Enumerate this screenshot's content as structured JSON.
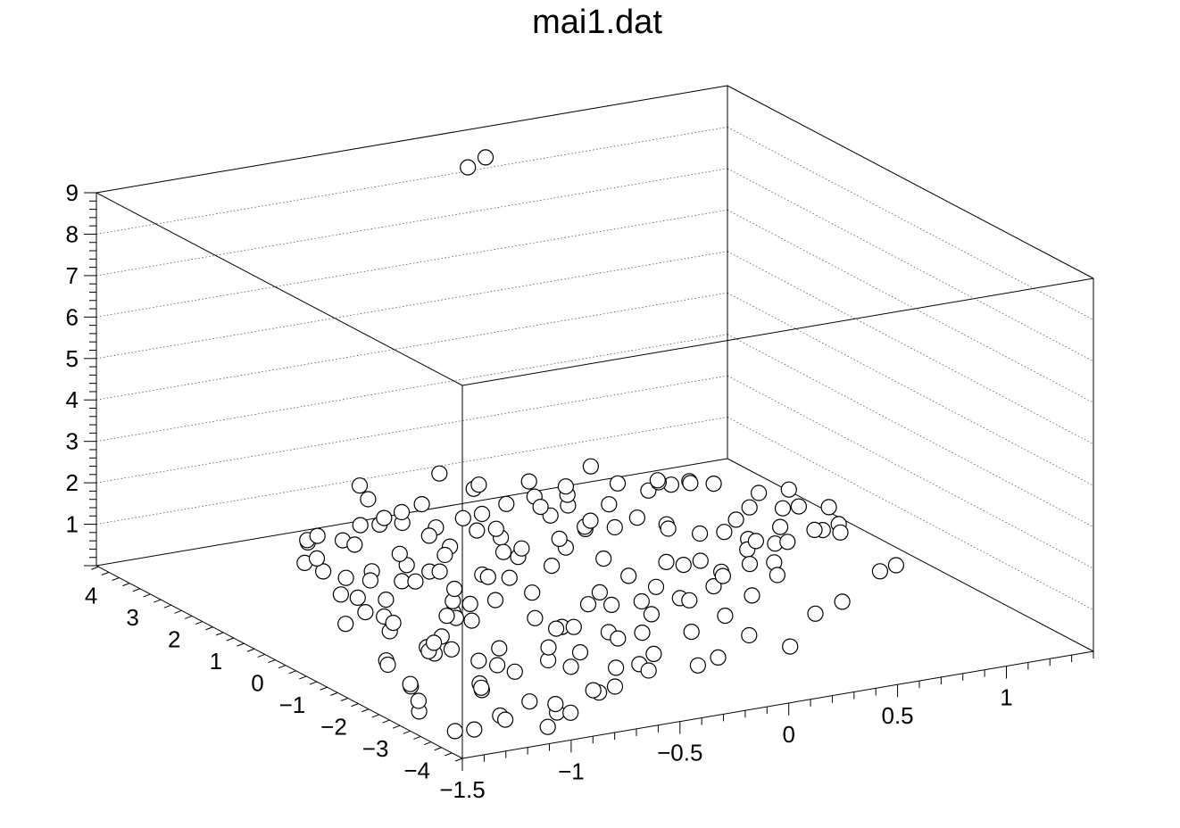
{
  "chart_data": {
    "type": "scatter",
    "title": "mai1.dat",
    "xlim": [
      -1.5,
      1.4
    ],
    "ylim": [
      -4.3,
      4.5
    ],
    "zlim": [
      0,
      9
    ],
    "grid": true,
    "x_ticks": [
      {
        "value": -1.5,
        "label": "−1.5"
      },
      {
        "value": -1.0,
        "label": "−1"
      },
      {
        "value": -0.5,
        "label": "−0.5"
      },
      {
        "value": 0.0,
        "label": "0"
      },
      {
        "value": 0.5,
        "label": "0.5"
      },
      {
        "value": 1.0,
        "label": "1"
      }
    ],
    "y_ticks": [
      {
        "value": 4,
        "label": "4"
      },
      {
        "value": 3,
        "label": "3"
      },
      {
        "value": 2,
        "label": "2"
      },
      {
        "value": 1,
        "label": "1"
      },
      {
        "value": 0,
        "label": "0"
      },
      {
        "value": -1,
        "label": "−1"
      },
      {
        "value": -2,
        "label": "−2"
      },
      {
        "value": -3,
        "label": "−3"
      },
      {
        "value": -4,
        "label": "−4"
      }
    ],
    "z_ticks": [
      {
        "value": 1,
        "label": "1"
      },
      {
        "value": 2,
        "label": "2"
      },
      {
        "value": 3,
        "label": "3"
      },
      {
        "value": 4,
        "label": "4"
      },
      {
        "value": 5,
        "label": "5"
      },
      {
        "value": 6,
        "label": "6"
      },
      {
        "value": 7,
        "label": "7"
      },
      {
        "value": 8,
        "label": "8"
      },
      {
        "value": 9,
        "label": "9"
      }
    ],
    "points": [
      [
        -1.05,
        -4.0,
        0.2
      ],
      [
        -0.95,
        -3.7,
        0.3
      ],
      [
        -0.85,
        -3.5,
        0.1
      ],
      [
        -0.7,
        -3.4,
        0.4
      ],
      [
        -0.55,
        -3.0,
        0.2
      ],
      [
        -0.4,
        -2.8,
        0.5
      ],
      [
        -0.3,
        -2.5,
        0.1
      ],
      [
        -0.15,
        -2.9,
        0.3
      ],
      [
        0.0,
        -2.6,
        0.2
      ],
      [
        0.2,
        -2.3,
        0.4
      ],
      [
        0.35,
        -2.5,
        0.1
      ],
      [
        0.6,
        -1.8,
        0.3
      ],
      [
        0.8,
        -1.4,
        0.2
      ],
      [
        1.05,
        -1.0,
        0.5
      ],
      [
        1.2,
        -0.6,
        0.3
      ],
      [
        -1.2,
        -3.2,
        0.8
      ],
      [
        -1.1,
        -2.6,
        1.1
      ],
      [
        -0.9,
        -2.0,
        0.5
      ],
      [
        -0.65,
        -1.6,
        1.2
      ],
      [
        -0.45,
        -1.2,
        0.6
      ],
      [
        -0.2,
        -0.8,
        1.0
      ],
      [
        0.05,
        -0.5,
        0.4
      ],
      [
        0.3,
        -0.2,
        0.9
      ],
      [
        0.55,
        0.2,
        0.3
      ],
      [
        0.75,
        0.6,
        0.7
      ],
      [
        0.95,
        1.0,
        0.2
      ],
      [
        1.1,
        1.6,
        0.6
      ],
      [
        1.25,
        2.0,
        0.3
      ],
      [
        -1.3,
        -2.4,
        1.5
      ],
      [
        -1.15,
        -1.8,
        0.9
      ],
      [
        -0.95,
        -1.2,
        1.4
      ],
      [
        -0.75,
        -0.6,
        0.7
      ],
      [
        -0.5,
        -0.2,
        1.3
      ],
      [
        -0.3,
        0.3,
        0.5
      ],
      [
        -0.05,
        0.8,
        1.1
      ],
      [
        0.2,
        1.2,
        0.4
      ],
      [
        0.45,
        1.7,
        0.9
      ],
      [
        0.7,
        2.3,
        0.2
      ],
      [
        0.9,
        2.8,
        0.8
      ],
      [
        1.0,
        3.3,
        0.4
      ],
      [
        -1.35,
        -1.0,
        2.0
      ],
      [
        -1.2,
        -0.4,
        1.2
      ],
      [
        -1.0,
        0.2,
        0.6
      ],
      [
        -0.8,
        0.7,
        1.4
      ],
      [
        -0.6,
        1.2,
        0.8
      ],
      [
        -0.35,
        1.7,
        1.6
      ],
      [
        -0.1,
        2.1,
        0.7
      ],
      [
        0.15,
        2.6,
        1.2
      ],
      [
        0.4,
        3.1,
        0.5
      ],
      [
        0.6,
        3.6,
        1.0
      ],
      [
        -1.25,
        0.8,
        1.8
      ],
      [
        -1.05,
        1.4,
        1.1
      ],
      [
        -0.85,
        1.9,
        0.5
      ],
      [
        -0.6,
        2.4,
        1.3
      ],
      [
        -0.4,
        2.9,
        0.9
      ],
      [
        -0.15,
        3.4,
        0.3
      ],
      [
        0.1,
        3.8,
        0.8
      ],
      [
        -1.4,
        -3.6,
        0.2
      ],
      [
        -1.25,
        -3.9,
        0.6
      ],
      [
        -1.0,
        -3.3,
        0.4
      ],
      [
        -0.8,
        -2.7,
        0.9
      ],
      [
        -0.6,
        -2.2,
        0.3
      ],
      [
        -0.35,
        -1.8,
        0.7
      ],
      [
        -0.1,
        -1.3,
        0.2
      ],
      [
        0.15,
        -0.9,
        0.6
      ],
      [
        0.4,
        -0.4,
        0.4
      ],
      [
        0.65,
        0.1,
        0.8
      ],
      [
        0.85,
        0.5,
        0.1
      ],
      [
        1.15,
        0.9,
        0.4
      ],
      [
        1.3,
        1.3,
        0.2
      ],
      [
        -1.45,
        -2.8,
        0.9
      ],
      [
        -1.3,
        -2.0,
        0.4
      ],
      [
        -1.1,
        -1.4,
        0.7
      ],
      [
        -0.9,
        -0.9,
        0.3
      ],
      [
        -0.7,
        -0.3,
        0.9
      ],
      [
        -0.45,
        0.4,
        0.4
      ],
      [
        -0.25,
        0.9,
        1.0
      ],
      [
        0.0,
        1.4,
        0.3
      ],
      [
        0.25,
        1.9,
        0.7
      ],
      [
        0.5,
        2.5,
        0.2
      ],
      [
        0.75,
        3.0,
        0.6
      ],
      [
        0.95,
        3.5,
        0.3
      ],
      [
        -1.35,
        0.2,
        2.7
      ],
      [
        -1.2,
        1.0,
        2.2
      ],
      [
        -1.0,
        1.8,
        1.7
      ],
      [
        -0.75,
        2.5,
        1.0
      ],
      [
        -0.5,
        3.2,
        1.4
      ],
      [
        -0.25,
        3.7,
        0.6
      ],
      [
        0.0,
        4.1,
        1.1
      ],
      [
        -1.4,
        -1.6,
        3.0
      ],
      [
        -1.3,
        -0.8,
        3.6
      ],
      [
        -1.15,
        0.0,
        4.0
      ],
      [
        0.15,
        4.2,
        8.3
      ],
      [
        0.25,
        4.3,
        8.4
      ],
      [
        -1.45,
        -3.0,
        0.4
      ],
      [
        -1.3,
        -2.2,
        0.1
      ],
      [
        -1.0,
        -2.1,
        0.2
      ],
      [
        -0.7,
        -1.0,
        0.2
      ],
      [
        -0.4,
        -0.8,
        0.3
      ],
      [
        -0.1,
        0.0,
        0.2
      ],
      [
        0.2,
        0.6,
        0.3
      ],
      [
        0.45,
        1.0,
        0.2
      ],
      [
        0.7,
        1.5,
        0.4
      ],
      [
        1.0,
        2.2,
        0.1
      ],
      [
        1.2,
        2.7,
        0.3
      ],
      [
        -0.55,
        0.9,
        0.2
      ],
      [
        -0.3,
        1.5,
        0.3
      ],
      [
        -0.05,
        2.3,
        0.2
      ],
      [
        0.3,
        3.0,
        0.4
      ],
      [
        0.55,
        3.9,
        0.2
      ],
      [
        -0.85,
        -0.4,
        0.3
      ],
      [
        -0.65,
        0.3,
        0.2
      ],
      [
        -0.4,
        2.0,
        0.2
      ],
      [
        0.05,
        3.0,
        0.3
      ],
      [
        0.8,
        4.0,
        0.2
      ],
      [
        -1.2,
        -0.9,
        0.3
      ],
      [
        -1.05,
        -0.2,
        0.5
      ],
      [
        -0.9,
        0.5,
        0.2
      ],
      [
        -0.65,
        1.6,
        0.4
      ],
      [
        -0.2,
        2.8,
        0.2
      ],
      [
        0.35,
        3.5,
        0.3
      ],
      [
        0.6,
        4.2,
        0.2
      ],
      [
        -0.8,
        1.2,
        0.3
      ],
      [
        -0.55,
        1.8,
        0.2
      ],
      [
        -0.3,
        2.4,
        0.3
      ],
      [
        0.0,
        3.2,
        0.2
      ],
      [
        0.25,
        3.8,
        0.3
      ],
      [
        0.95,
        3.8,
        0.2
      ],
      [
        1.1,
        2.4,
        0.2
      ],
      [
        0.9,
        1.2,
        0.2
      ],
      [
        0.55,
        0.7,
        0.3
      ],
      [
        0.25,
        0.2,
        0.2
      ],
      [
        -0.05,
        -0.3,
        0.3
      ],
      [
        -0.3,
        -0.7,
        0.2
      ],
      [
        -0.55,
        -1.4,
        0.3
      ],
      [
        -0.8,
        -1.9,
        0.2
      ],
      [
        -1.05,
        -2.4,
        0.3
      ],
      [
        -1.25,
        -1.2,
        0.4
      ],
      [
        -1.1,
        0.6,
        0.3
      ],
      [
        -0.95,
        1.5,
        0.4
      ],
      [
        -0.7,
        2.1,
        0.2
      ],
      [
        -0.45,
        2.7,
        0.3
      ],
      [
        -0.2,
        3.3,
        0.2
      ],
      [
        0.1,
        3.6,
        0.3
      ],
      [
        0.4,
        2.7,
        0.2
      ],
      [
        0.65,
        2.0,
        0.3
      ],
      [
        0.85,
        1.7,
        0.2
      ],
      [
        1.05,
        1.4,
        0.3
      ],
      [
        1.25,
        1.0,
        0.2
      ],
      [
        0.75,
        -0.1,
        0.2
      ],
      [
        0.5,
        -0.8,
        0.3
      ],
      [
        0.3,
        -1.2,
        0.2
      ],
      [
        0.05,
        -1.7,
        0.3
      ],
      [
        -0.2,
        -2.1,
        0.2
      ],
      [
        -0.45,
        -2.5,
        0.3
      ],
      [
        -0.65,
        -3.0,
        0.2
      ],
      [
        -0.9,
        -3.4,
        0.3
      ],
      [
        -1.15,
        -3.5,
        0.2
      ],
      [
        -1.35,
        -3.8,
        0.3
      ],
      [
        -0.5,
        -1.9,
        0.4
      ],
      [
        -0.25,
        -1.5,
        0.3
      ],
      [
        0.0,
        -1.0,
        0.4
      ],
      [
        0.25,
        -0.6,
        0.3
      ],
      [
        0.5,
        -0.1,
        0.4
      ],
      [
        0.7,
        0.3,
        0.3
      ],
      [
        0.95,
        0.7,
        0.4
      ],
      [
        1.15,
        1.1,
        0.3
      ],
      [
        -1.0,
        -1.0,
        0.6
      ],
      [
        -0.75,
        0.0,
        0.5
      ],
      [
        -0.6,
        0.6,
        0.7
      ],
      [
        -0.35,
        1.1,
        0.5
      ],
      [
        -0.1,
        1.6,
        0.7
      ],
      [
        0.15,
        2.0,
        0.5
      ],
      [
        0.35,
        2.3,
        0.6
      ],
      [
        0.55,
        2.9,
        0.5
      ],
      [
        0.85,
        3.3,
        0.6
      ],
      [
        1.05,
        3.0,
        0.5
      ],
      [
        1.3,
        2.5,
        0.4
      ],
      [
        1.35,
        1.8,
        0.3
      ],
      [
        -0.85,
        2.6,
        0.6
      ],
      [
        -0.6,
        3.0,
        0.5
      ],
      [
        -0.35,
        3.6,
        0.6
      ],
      [
        -0.1,
        4.0,
        0.5
      ],
      [
        0.2,
        4.2,
        0.6
      ],
      [
        0.45,
        4.3,
        0.4
      ]
    ]
  }
}
